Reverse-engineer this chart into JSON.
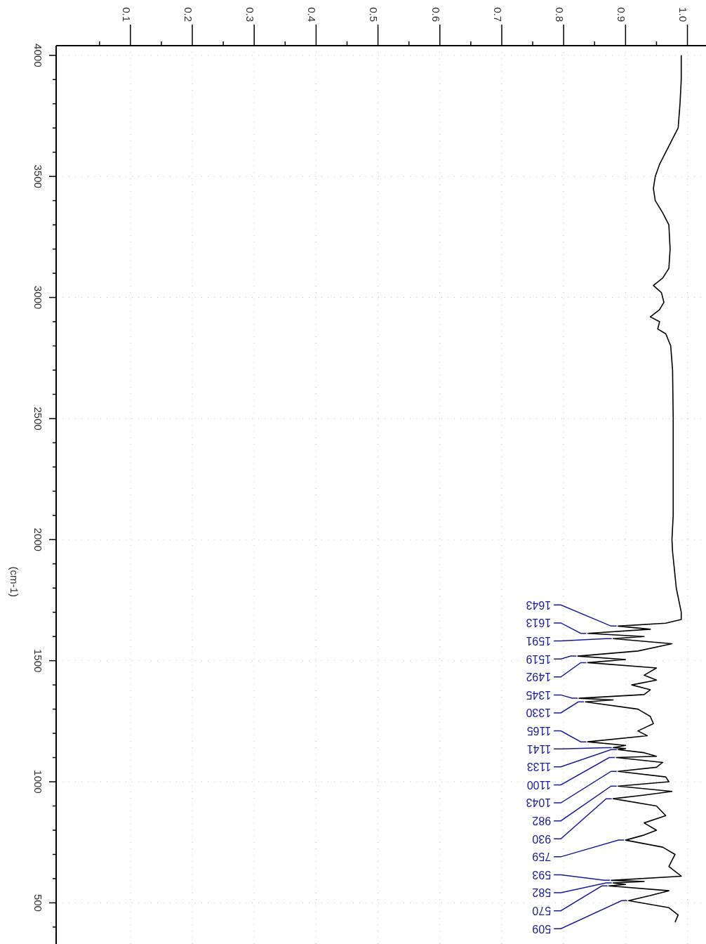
{
  "chart_data": {
    "type": "line",
    "ylabel": "(cm-1)",
    "ylim": [
      330,
      4040
    ],
    "yticks": [
      4000,
      {
        "value": 3900,
        "label": null
      },
      {
        "value": 3800,
        "label": null
      },
      {
        "value": 3700,
        "label": null
      },
      {
        "value": 3600,
        "label": null
      },
      3500,
      {
        "value": 3400,
        "label": null
      },
      {
        "value": 3300,
        "label": null
      },
      {
        "value": 3200,
        "label": null
      },
      {
        "value": 3100,
        "label": null
      },
      3000,
      {
        "value": 2900,
        "label": null
      },
      {
        "value": 2800,
        "label": null
      },
      {
        "value": 2700,
        "label": null
      },
      {
        "value": 2600,
        "label": null
      },
      2500,
      {
        "value": 2400,
        "label": null
      },
      {
        "value": 2300,
        "label": null
      },
      {
        "value": 2200,
        "label": null
      },
      {
        "value": 2100,
        "label": null
      },
      2000,
      {
        "value": 1900,
        "label": null
      },
      {
        "value": 1800,
        "label": null
      },
      {
        "value": 1700,
        "label": null
      },
      {
        "value": 1600,
        "label": null
      },
      1500,
      {
        "value": 1400,
        "label": null
      },
      {
        "value": 1300,
        "label": null
      },
      {
        "value": 1200,
        "label": null
      },
      {
        "value": 1100,
        "label": null
      },
      1000,
      {
        "value": 900,
        "label": null
      },
      {
        "value": 800,
        "label": null
      },
      {
        "value": 700,
        "label": null
      },
      {
        "value": 600,
        "label": null
      },
      500,
      {
        "value": 400,
        "label": null
      }
    ],
    "xlim": [
      -0.02,
      1.03
    ],
    "xticks": [
      {
        "value": 0.05,
        "label": null
      },
      0.1,
      {
        "value": 0.15,
        "label": null
      },
      0.2,
      {
        "value": 0.25,
        "label": null
      },
      0.3,
      {
        "value": 0.35,
        "label": null
      },
      0.4,
      {
        "value": 0.45,
        "label": null
      },
      0.5,
      {
        "value": 0.55,
        "label": null
      },
      0.6,
      {
        "value": 0.65,
        "label": null
      },
      0.7,
      {
        "value": 0.75,
        "label": null
      },
      0.8,
      {
        "value": 0.85,
        "label": null
      },
      0.9,
      {
        "value": 0.95,
        "label": null
      },
      {
        "value": 1,
        "label": "1.0"
      }
    ],
    "grid": true,
    "line_style": "solid",
    "series": [
      {
        "color": "#000000",
        "values": [
          4000,
          3900,
          3800,
          3700,
          3650,
          3600,
          3550,
          3500,
          3450,
          3400,
          3350,
          3300,
          3200,
          3120,
          3080,
          3050,
          3020,
          2980,
          2950,
          2920,
          2900,
          2870,
          2850,
          2800,
          2700,
          2500,
          2300,
          2100,
          2000,
          1950,
          1900,
          1800,
          1700,
          1670,
          1655,
          1643,
          1630,
          1613,
          1600,
          1591,
          1570,
          1540,
          1519,
          1505,
          1492,
          1470,
          1440,
          1420,
          1400,
          1380,
          1360,
          1345,
          1338,
          1330,
          1300,
          1270,
          1240,
          1210,
          1190,
          1165,
          1150,
          1141,
          1137,
          1133,
          1120,
          1105,
          1100,
          1080,
          1060,
          1043,
          1020,
          1000,
          982,
          960,
          945,
          930,
          900,
          860,
          830,
          800,
          780,
          759,
          730,
          700,
          650,
          610,
          593,
          588,
          582,
          576,
          570,
          550,
          530,
          509,
          480,
          450,
          420
        ],
        "x": [
          0.99,
          0.99,
          0.988,
          0.985,
          0.975,
          0.965,
          0.955,
          0.948,
          0.945,
          0.948,
          0.96,
          0.97,
          0.972,
          0.97,
          0.96,
          0.945,
          0.958,
          0.962,
          0.955,
          0.94,
          0.955,
          0.952,
          0.965,
          0.973,
          0.976,
          0.977,
          0.977,
          0.977,
          0.975,
          0.976,
          0.978,
          0.982,
          0.99,
          0.99,
          0.965,
          0.888,
          0.94,
          0.839,
          0.93,
          0.88,
          0.975,
          0.92,
          0.823,
          0.9,
          0.839,
          0.95,
          0.93,
          0.95,
          0.91,
          0.94,
          0.93,
          0.825,
          0.88,
          0.835,
          0.92,
          0.94,
          0.945,
          0.92,
          0.935,
          0.839,
          0.9,
          0.88,
          0.9,
          0.888,
          0.93,
          0.95,
          0.885,
          0.96,
          0.95,
          0.888,
          0.965,
          0.97,
          0.888,
          0.975,
          0.93,
          0.88,
          0.95,
          0.965,
          0.93,
          0.95,
          0.93,
          0.9,
          0.96,
          0.98,
          0.97,
          0.99,
          0.877,
          0.93,
          0.88,
          0.9,
          0.873,
          0.97,
          0.94,
          0.905,
          0.97,
          0.985,
          0.98
        ]
      }
    ],
    "annotations": [
      {
        "text": "1643",
        "x": 0.888,
        "y": 1643
      },
      {
        "text": "1613",
        "x": 0.839,
        "y": 1613
      },
      {
        "text": "1591",
        "x": 0.88,
        "y": 1591
      },
      {
        "text": "1519",
        "x": 0.823,
        "y": 1519
      },
      {
        "text": "1492",
        "x": 0.839,
        "y": 1492
      },
      {
        "text": "1345",
        "x": 0.825,
        "y": 1345
      },
      {
        "text": "1330",
        "x": 0.835,
        "y": 1330
      },
      {
        "text": "1165",
        "x": 0.839,
        "y": 1165
      },
      {
        "text": "1141",
        "x": 0.88,
        "y": 1141
      },
      {
        "text": "1133",
        "x": 0.888,
        "y": 1133
      },
      {
        "text": "1100",
        "x": 0.885,
        "y": 1100
      },
      {
        "text": "1043",
        "x": 0.888,
        "y": 1043
      },
      {
        "text": "982",
        "x": 0.888,
        "y": 982
      },
      {
        "text": "930",
        "x": 0.88,
        "y": 930
      },
      {
        "text": "759",
        "x": 0.9,
        "y": 759
      },
      {
        "text": "593",
        "x": 0.877,
        "y": 593
      },
      {
        "text": "582",
        "x": 0.88,
        "y": 582
      },
      {
        "text": "570",
        "x": 0.873,
        "y": 570
      },
      {
        "text": "509",
        "x": 0.905,
        "y": 509
      }
    ]
  }
}
